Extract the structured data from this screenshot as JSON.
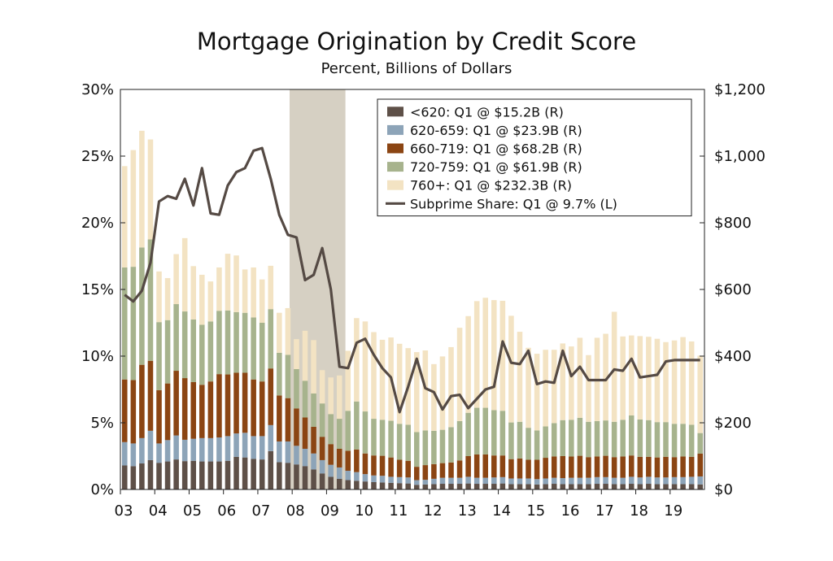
{
  "title": "Mortgage Origination by Credit Score",
  "subtitle": "Percent, Billions of Dollars",
  "colors": {
    "lt620": "#5e5048",
    "s620_659": "#8da4b8",
    "s660_719": "#8b4513",
    "s720_759": "#a7b38d",
    "s760": "#f3e3c3",
    "line": "#554a44",
    "recession": "#d6d0c3"
  },
  "chart_data": {
    "type": "bar",
    "stacked": true,
    "x_tick_labels": [
      "03",
      "04",
      "05",
      "06",
      "07",
      "08",
      "09",
      "10",
      "11",
      "12",
      "13",
      "14",
      "15",
      "16",
      "17",
      "18",
      "19"
    ],
    "left_axis": {
      "ticks": [
        "0%",
        "5%",
        "10%",
        "15%",
        "20%",
        "25%",
        "30%"
      ],
      "range": [
        0,
        30
      ]
    },
    "right_axis": {
      "ticks": [
        "$0",
        "$200",
        "$400",
        "$600",
        "$800",
        "$1,000",
        "$1,200"
      ],
      "range": [
        0,
        1200
      ]
    },
    "recession": {
      "start_quarter": "2008 Q1",
      "end_quarter": "2009 Q2"
    },
    "quarters_start": "2003 Q1",
    "series": [
      {
        "key": "lt620",
        "name": "<620: Q1 @ $15.2B (R)",
        "values": [
          72,
          70,
          78,
          88,
          80,
          84,
          90,
          85,
          86,
          84,
          84,
          84,
          86,
          98,
          96,
          92,
          90,
          115,
          82,
          80,
          75,
          70,
          60,
          48,
          38,
          32,
          28,
          26,
          24,
          22,
          21,
          20,
          19,
          18,
          14,
          15,
          16,
          17,
          17,
          17,
          18,
          17,
          17,
          17,
          18,
          16,
          16,
          16,
          15,
          16,
          17,
          16,
          16,
          16,
          16,
          17,
          17,
          16,
          16,
          17,
          16,
          17,
          16,
          16,
          16,
          16,
          16,
          15.2
        ]
      },
      {
        "key": "s620_659",
        "name": "620-659: Q1 @ $23.9B (R)",
        "values": [
          70,
          68,
          76,
          88,
          58,
          64,
          72,
          64,
          66,
          70,
          70,
          72,
          74,
          70,
          74,
          68,
          70,
          78,
          62,
          64,
          56,
          52,
          48,
          40,
          36,
          34,
          28,
          26,
          22,
          20,
          20,
          18,
          18,
          18,
          14,
          14,
          16,
          18,
          18,
          18,
          20,
          18,
          18,
          19,
          19,
          17,
          17,
          17,
          16,
          17,
          18,
          18,
          19,
          19,
          19,
          20,
          20,
          19,
          19,
          21,
          20,
          21,
          20,
          20,
          21,
          21,
          22,
          23.9
        ]
      },
      {
        "key": "s660_719",
        "name": "660-719: Q1 @ $68.2B (R)",
        "values": [
          188,
          190,
          220,
          210,
          160,
          170,
          194,
          185,
          170,
          160,
          170,
          190,
          185,
          182,
          180,
          170,
          164,
          170,
          138,
          130,
          112,
          94,
          80,
          70,
          62,
          56,
          60,
          68,
          62,
          60,
          60,
          58,
          52,
          50,
          40,
          44,
          44,
          44,
          46,
          52,
          62,
          70,
          70,
          66,
          65,
          58,
          60,
          56,
          58,
          62,
          64,
          66,
          64,
          66,
          62,
          62,
          64,
          62,
          64,
          64,
          62,
          60,
          60,
          62,
          60,
          62,
          60,
          68.2
        ]
      },
      {
        "key": "s720_759",
        "name": "720-759: Q1 @ $61.9B (R)",
        "values": [
          336,
          340,
          352,
          364,
          204,
          190,
          200,
          200,
          188,
          180,
          180,
          190,
          192,
          182,
          180,
          186,
          176,
          178,
          128,
          130,
          118,
          110,
          100,
          100,
          90,
          90,
          120,
          144,
          126,
          110,
          108,
          110,
          108,
          108,
          104,
          104,
          100,
          100,
          106,
          118,
          130,
          140,
          140,
          136,
          134,
          110,
          110,
          96,
          88,
          94,
          100,
          108,
          110,
          114,
          106,
          106,
          106,
          106,
          110,
          120,
          112,
          110,
          106,
          104,
          100,
          98,
          96,
          61.9
        ]
      },
      {
        "key": "s760",
        "name": "760+: Q1 @ $232.3B (R)",
        "values": [
          304,
          350,
          350,
          300,
          152,
          126,
          150,
          220,
          160,
          150,
          120,
          130,
          170,
          170,
          130,
          150,
          130,
          130,
          120,
          140,
          90,
          150,
          160,
          100,
          110,
          130,
          180,
          250,
          270,
          260,
          240,
          250,
          240,
          230,
          240,
          240,
          200,
          220,
          240,
          280,
          290,
          320,
          330,
          330,
          330,
          320,
          270,
          240,
          230,
          230,
          220,
          230,
          220,
          240,
          200,
          250,
          260,
          330,
          250,
          240,
          250,
          250,
          250,
          240,
          250,
          260,
          250,
          232.3
        ]
      },
      {
        "key": "line",
        "name": "Subprime Share: Q1 @ 9.7% (L)",
        "values": [
          14.6,
          14.1,
          14.9,
          17.0,
          21.6,
          22.0,
          21.8,
          23.3,
          21.3,
          24.1,
          20.7,
          20.6,
          22.8,
          23.8,
          24.1,
          25.4,
          25.6,
          23.3,
          20.6,
          19.1,
          18.9,
          15.7,
          16.1,
          18.1,
          15.0,
          9.2,
          9.1,
          11.0,
          11.3,
          10.1,
          9.1,
          8.4,
          5.8,
          7.7,
          9.8,
          7.6,
          7.3,
          6.0,
          7.0,
          7.1,
          6.1,
          6.8,
          7.5,
          7.7,
          11.1,
          9.5,
          9.4,
          10.4,
          7.9,
          8.1,
          8.0,
          10.4,
          8.5,
          9.2,
          8.2,
          8.2,
          8.2,
          9.0,
          8.9,
          9.8,
          8.4,
          8.5,
          8.6,
          9.6,
          9.7,
          9.7,
          9.7,
          9.7
        ]
      }
    ]
  }
}
